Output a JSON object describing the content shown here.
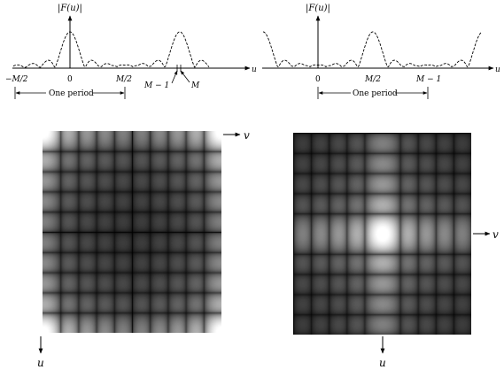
{
  "left_plot": {
    "axis_title": "|F(u)|",
    "axis_var": "u",
    "tick_neg_half": "−M/2",
    "tick_zero": "0",
    "tick_pos_half": "M/2",
    "tick_m_minus_1": "M − 1",
    "tick_m": "M",
    "period_label": "One period"
  },
  "right_plot": {
    "axis_title": "|F(u)|",
    "axis_var": "u",
    "tick_zero": "0",
    "tick_pos_half": "M/2",
    "tick_m_minus_1": "M − 1",
    "period_label": "One period"
  },
  "left_image": {
    "axis_v": "v",
    "axis_u": "u",
    "bright_cells": "corners",
    "grid_cells": 10,
    "peak_color": "#ffffff",
    "dark_color": "#000000"
  },
  "right_image": {
    "axis_v": "v",
    "axis_u": "u",
    "bright_cells": "center",
    "grid_cells": 10,
    "peak_color": "#ffffff",
    "dark_color": "#000000"
  }
}
